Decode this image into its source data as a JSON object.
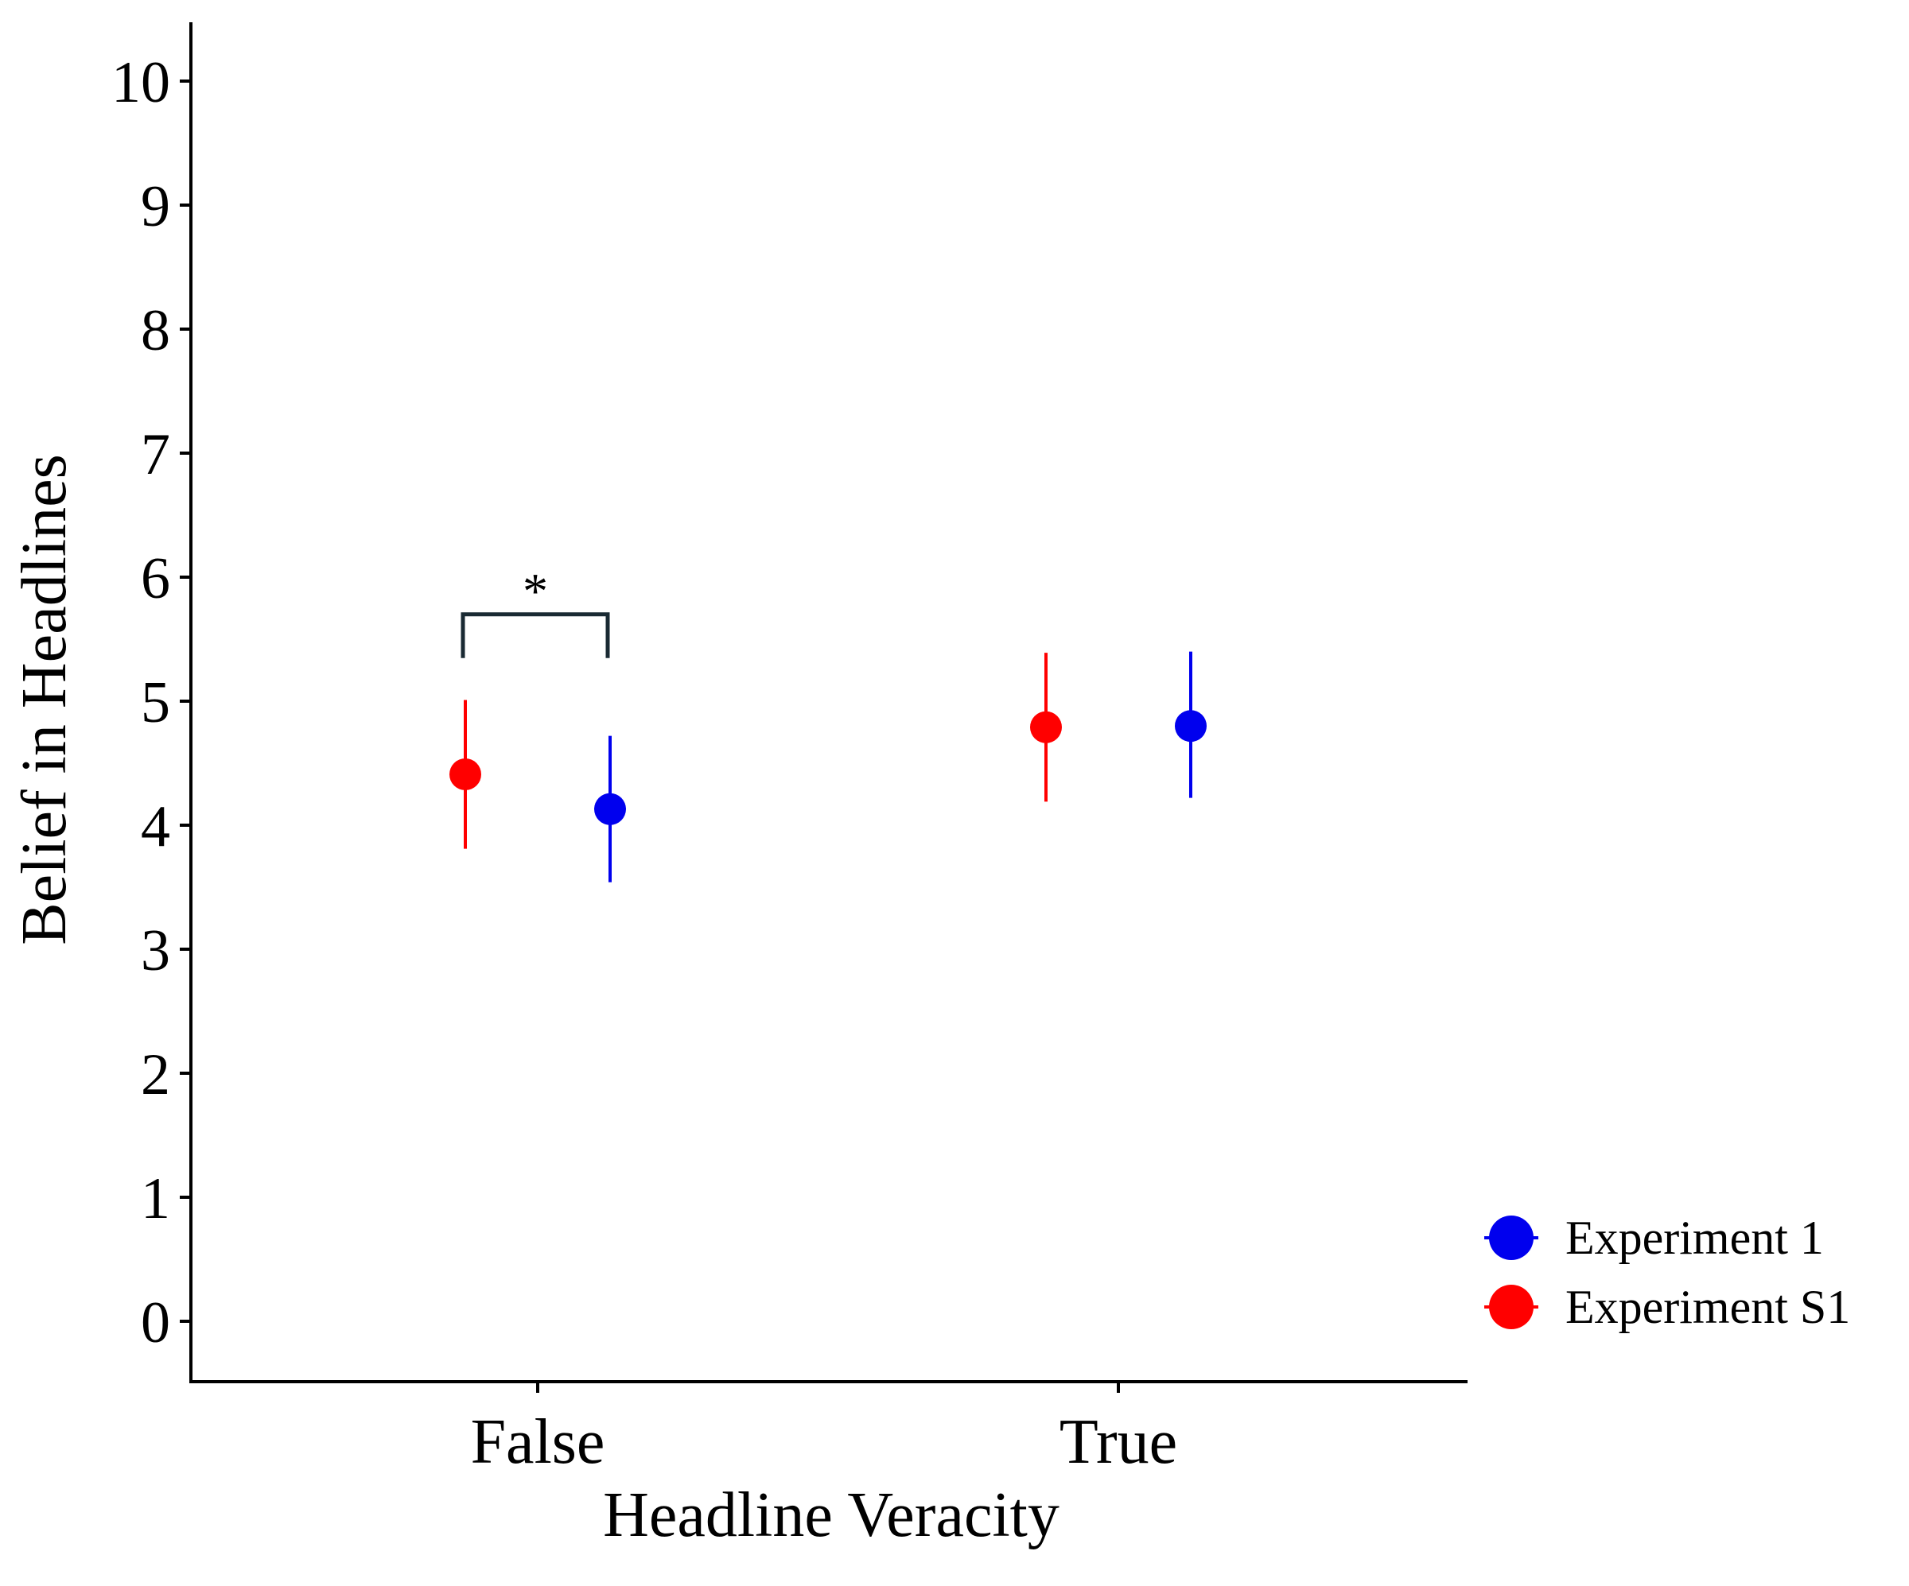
{
  "chart_data": {
    "type": "scatter",
    "title": "",
    "xlabel": "Headline Veracity",
    "ylabel": "Belief in Headlines",
    "categories": [
      "False",
      "True"
    ],
    "ylim": [
      -0.5,
      10.5
    ],
    "yticks": [
      0,
      1,
      2,
      3,
      4,
      5,
      6,
      7,
      8,
      9,
      10
    ],
    "grid": false,
    "legend_position": "right-bottom",
    "series": [
      {
        "name": "Experiment S1",
        "color": "#ff0000",
        "values": [
          4.41,
          4.79
        ],
        "lower": [
          3.81,
          4.19
        ],
        "upper": [
          5.01,
          5.39
        ]
      },
      {
        "name": "Experiment 1",
        "color": "#0000ee",
        "values": [
          4.13,
          4.8
        ],
        "lower": [
          3.54,
          4.22
        ],
        "upper": [
          4.72,
          5.4
        ]
      }
    ],
    "legend_order": [
      "Experiment 1",
      "Experiment S1"
    ],
    "annotations": [
      {
        "text": "*",
        "category": "False",
        "bracket_y": 5.7,
        "between": [
          "Experiment S1",
          "Experiment 1"
        ]
      }
    ]
  }
}
